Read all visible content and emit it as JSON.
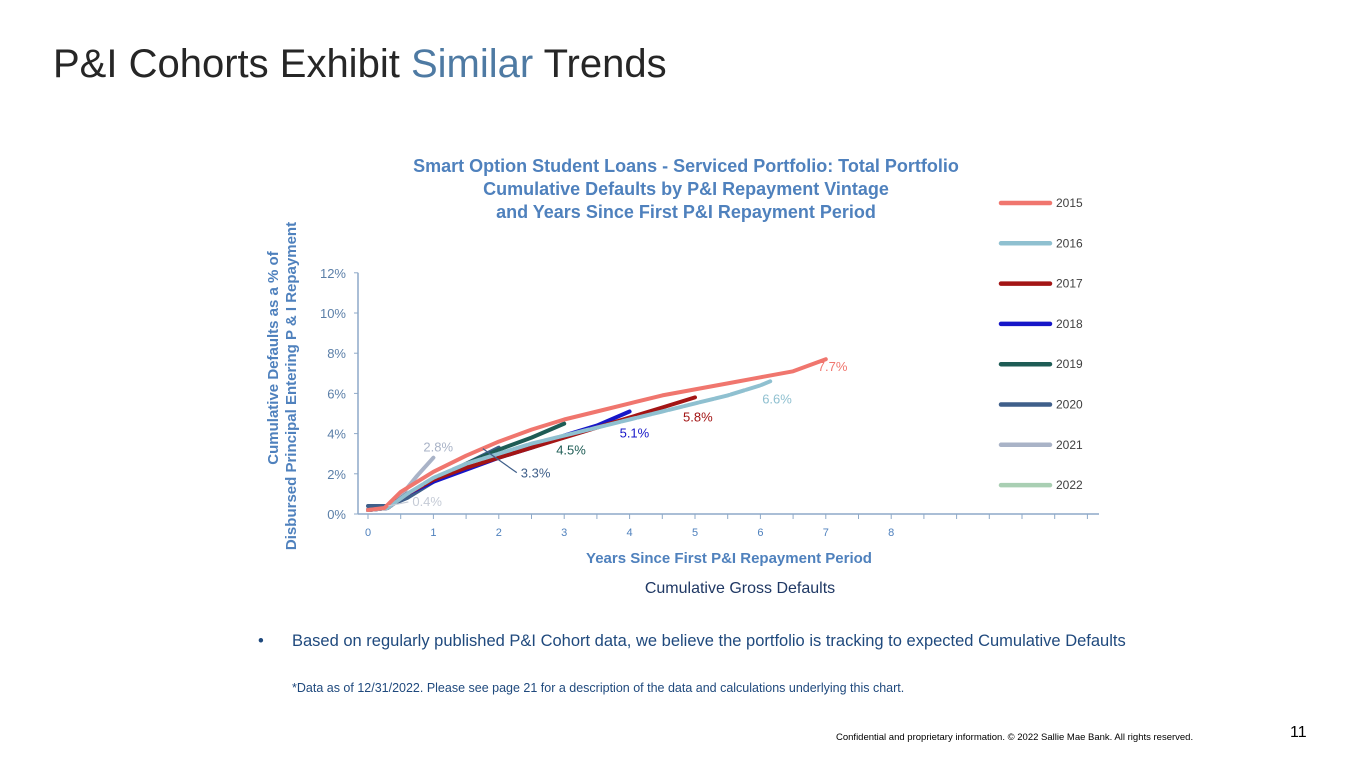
{
  "slide": {
    "title_before": "P&I Cohorts Exhibit ",
    "title_accent": "Similar",
    "title_after": " Trends",
    "caption": "Cumulative Gross Defaults",
    "bullet_marker": "•",
    "bullet": "Based on regularly published P&I Cohort data, we believe the portfolio is tracking to expected Cumulative Defaults",
    "footnote": "*Data as of 12/31/2022.  Please see page 21 for a description of the data and calculations underlying this chart.",
    "confidential": "Confidential and proprietary information. © 2022 Sallie Mae Bank. All rights reserved.",
    "page_number": "11"
  },
  "chart_data": {
    "type": "line",
    "title_lines": [
      "Smart Option Student Loans - Serviced Portfolio: Total Portfolio",
      "Cumulative Defaults by P&I Repayment Vintage",
      "and Years Since First P&I Repayment Period"
    ],
    "xlabel": "Years Since First P&I Repayment Period",
    "ylabel_lines": [
      "Cumulative Defaults as a % of",
      "Disbursed Principal  Entering P & I Repayment"
    ],
    "xlim": [
      0,
      11.2
    ],
    "ylim": [
      0,
      12
    ],
    "x_ticks": [
      "0",
      "1",
      "2",
      "3",
      "4",
      "5",
      "6",
      "7",
      "8"
    ],
    "y_ticks": [
      "0%",
      "2%",
      "4%",
      "6%",
      "8%",
      "10%",
      "12%"
    ],
    "legend_position": "right",
    "series": [
      {
        "name": "2015",
        "color": "#f0766e",
        "x": [
          0,
          0.25,
          0.5,
          1,
          1.5,
          2,
          2.5,
          3,
          3.5,
          4,
          4.5,
          5,
          5.5,
          6,
          6.5,
          7
        ],
        "y": [
          0.2,
          0.3,
          1.1,
          2.1,
          2.9,
          3.6,
          4.2,
          4.7,
          5.1,
          5.5,
          5.9,
          6.2,
          6.5,
          6.8,
          7.1,
          7.7
        ],
        "end_label": "7.7%",
        "label_color": "#f0766e"
      },
      {
        "name": "2016",
        "color": "#8fc0d0",
        "x": [
          0,
          0.3,
          0.6,
          1,
          1.5,
          2,
          2.5,
          3,
          3.5,
          4,
          4.5,
          5,
          5.5,
          6,
          6.15
        ],
        "y": [
          0.2,
          0.3,
          1.0,
          1.8,
          2.5,
          3.0,
          3.5,
          3.9,
          4.3,
          4.7,
          5.1,
          5.5,
          5.9,
          6.4,
          6.6
        ],
        "end_label": "6.6%",
        "label_color": "#8fc0d0"
      },
      {
        "name": "2017",
        "color": "#a31515",
        "x": [
          0,
          0.3,
          0.6,
          1,
          1.5,
          2,
          2.5,
          3,
          3.5,
          4,
          4.5,
          5
        ],
        "y": [
          0.2,
          0.3,
          1.0,
          1.7,
          2.3,
          2.8,
          3.3,
          3.8,
          4.3,
          4.8,
          5.3,
          5.8
        ],
        "end_label": "5.8%",
        "label_color": "#a31515"
      },
      {
        "name": "2018",
        "color": "#1616c8",
        "x": [
          0,
          0.3,
          0.6,
          1,
          1.5,
          2,
          2.5,
          3,
          3.5,
          4
        ],
        "y": [
          0.2,
          0.3,
          1.0,
          1.6,
          2.2,
          2.8,
          3.3,
          3.9,
          4.4,
          5.1
        ],
        "end_label": "5.1%",
        "label_color": "#1616c8"
      },
      {
        "name": "2019",
        "color": "#1e5c55",
        "x": [
          0,
          0.3,
          0.6,
          1,
          1.5,
          2,
          2.5,
          3
        ],
        "y": [
          0.2,
          0.3,
          1.0,
          1.7,
          2.5,
          3.2,
          3.8,
          4.5
        ],
        "end_label": "4.5%",
        "label_color": "#1e5c55"
      },
      {
        "name": "2020",
        "color": "#3f5f8a",
        "x": [
          0,
          0.3,
          0.6,
          1,
          1.5,
          2
        ],
        "y": [
          0.4,
          0.4,
          0.8,
          1.6,
          2.5,
          3.3
        ],
        "end_label": "3.3%",
        "label_color": "#3f5f8a"
      },
      {
        "name": "2021",
        "color": "#a9b3c7",
        "x": [
          0,
          0.25,
          0.5,
          0.75,
          1
        ],
        "y": [
          0.2,
          0.3,
          0.9,
          1.9,
          2.8
        ],
        "end_label": "2.8%",
        "label_color": "#a9b3c7"
      },
      {
        "name": "2022",
        "color": "#a9cfb3",
        "x": [
          0,
          0.25
        ],
        "y": [
          0.2,
          0.4
        ],
        "end_label": "0.4%",
        "label_color": "#c5cbd6"
      }
    ]
  }
}
